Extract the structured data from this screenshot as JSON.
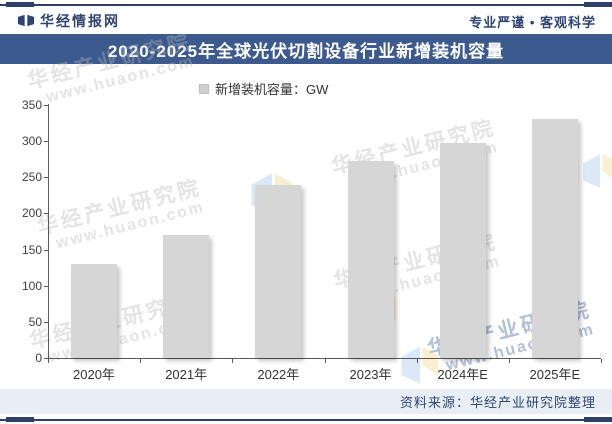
{
  "header": {
    "site_name": "华经情报网",
    "tagline": "专业严谨 • 客观科学",
    "logo_icon": "huajing-book-logo"
  },
  "banner": {
    "title": "2020-2025年全球光伏切割设备行业新增装机容量"
  },
  "legend": {
    "label": "新增装机容量：GW",
    "marker_color": "#d6d6d6"
  },
  "chart_data": {
    "type": "bar",
    "title": "2020-2025年全球光伏切割设备行业新增装机容量",
    "series_name": "新增装机容量",
    "unit": "GW",
    "categories": [
      "2020年",
      "2021年",
      "2022年",
      "2023年",
      "2024年E",
      "2025年E"
    ],
    "values": [
      130,
      170,
      240,
      273,
      298,
      330
    ],
    "xlabel": "",
    "ylabel": "",
    "ylim": [
      0,
      350
    ],
    "yticks": [
      0,
      50,
      100,
      150,
      200,
      250,
      300,
      350
    ],
    "grid": false,
    "legend_position": "top-center",
    "bar_color": "#d6d6d6"
  },
  "watermark": {
    "line1": "华经产业研究院",
    "line2": "www.huaon.com"
  },
  "footer": {
    "source": "资料来源：华经产业研究院整理"
  },
  "colors": {
    "navy": "#2f4473",
    "banner_bg": "#3d5a8f",
    "bar": "#d6d6d6",
    "source_band_bg": "#e9eef5",
    "axis": "#595959"
  }
}
